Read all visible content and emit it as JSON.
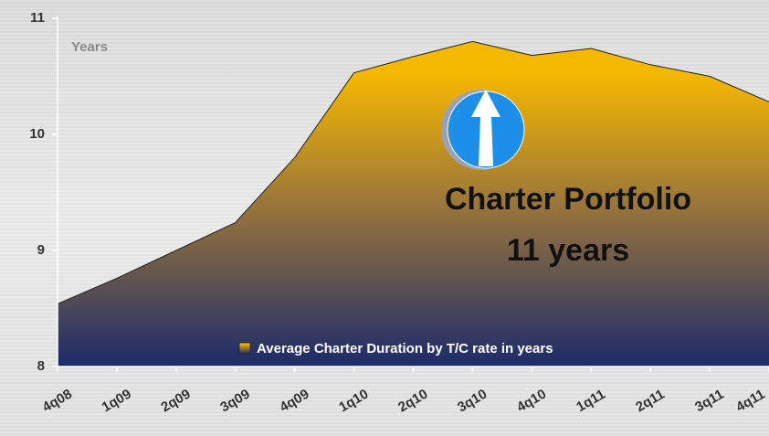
{
  "chart_data": {
    "type": "area",
    "y_label": "Years",
    "annotation": [
      "Charter Portfolio",
      "11 years"
    ],
    "categories": [
      "4q08",
      "1q09",
      "2q09",
      "3q09",
      "4q09",
      "1q10",
      "2q10",
      "3q10",
      "4q10",
      "1q11",
      "2q11",
      "3q11",
      "4q11"
    ],
    "series": [
      {
        "name": "Average Charter Duration by T/C rate in years",
        "color": "#f5b800",
        "values": [
          8.54,
          8.76,
          9.0,
          9.24,
          9.8,
          10.53,
          10.67,
          10.8,
          10.68,
          10.74,
          10.6,
          10.5,
          10.28
        ]
      }
    ],
    "ylim": [
      8,
      11
    ],
    "yticks": [
      8,
      9,
      10,
      11
    ]
  }
}
